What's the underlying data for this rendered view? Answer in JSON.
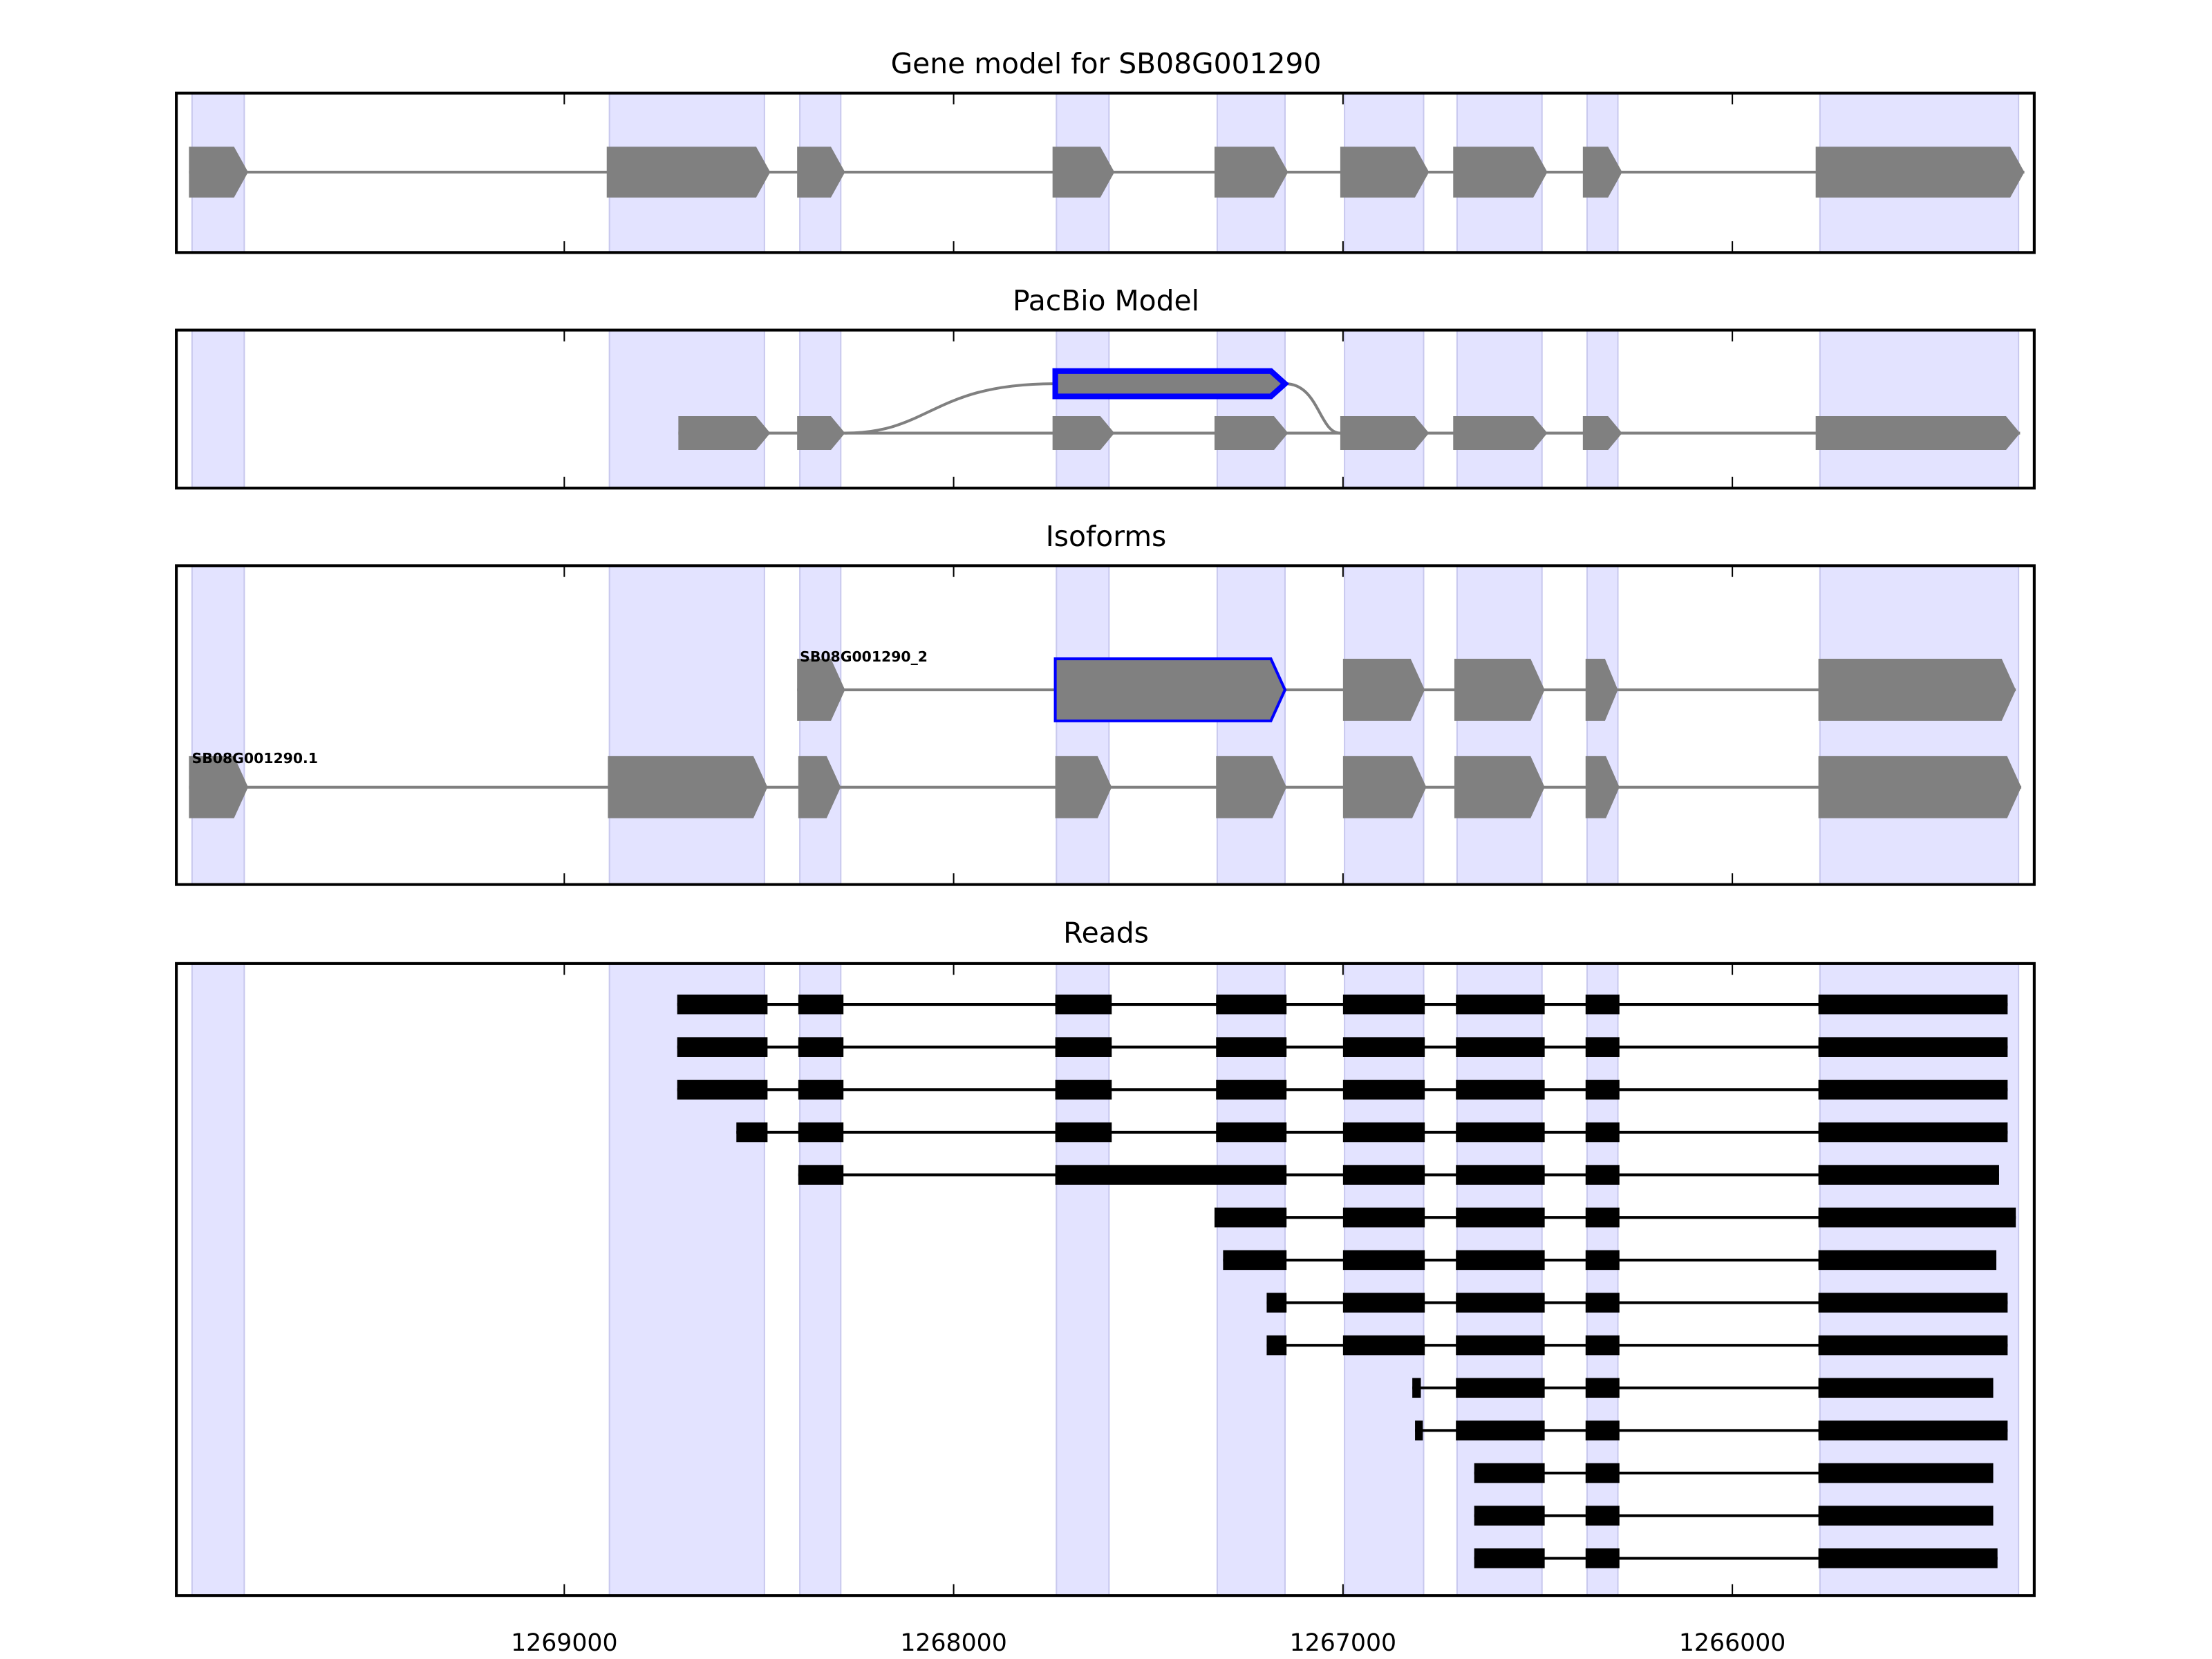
{
  "chart_data": {
    "type": "gene-structure",
    "xlim": [
      1270000,
      1265225
    ],
    "xticks": [
      1269000,
      1268000,
      1267000,
      1266000
    ],
    "xtick_labels": [
      "1269000",
      "1268000",
      "1267000",
      "1266000"
    ],
    "colors": {
      "band": "#e3e3ff",
      "band_edge": "#c8c8ee",
      "exon": "#808080",
      "highlight": "#0000ff",
      "read": "#000000"
    },
    "bands": [
      [
        1269956,
        1269822
      ],
      [
        1268884,
        1268486
      ],
      [
        1268395,
        1268290
      ],
      [
        1267736,
        1267601
      ],
      [
        1267323,
        1267149
      ],
      [
        1266996,
        1266793
      ],
      [
        1266707,
        1266489
      ],
      [
        1266373,
        1266294
      ],
      [
        1265775,
        1265265
      ]
    ],
    "panels": [
      {
        "title": "Gene model for SB08G001290",
        "tracks": [
          {
            "exons": [
              [
                1269964,
                1269812
              ],
              [
                1268891,
                1268471
              ],
              [
                1268402,
                1268279
              ],
              [
                1267746,
                1267587
              ],
              [
                1267330,
                1267141
              ],
              [
                1267007,
                1266779
              ],
              [
                1266717,
                1266475
              ],
              [
                1266384,
                1266283
              ],
              [
                1265786,
                1265250
              ]
            ]
          }
        ]
      },
      {
        "title": "PacBio Model",
        "tracks": [
          {
            "exons": [
              [
                1268707,
                1268471
              ],
              [
                1268402,
                1268279
              ],
              [
                1267746,
                1267587
              ],
              [
                1267330,
                1267141
              ],
              [
                1267007,
                1266779
              ],
              [
                1266717,
                1266475
              ],
              [
                1266384,
                1266283
              ],
              [
                1265786,
                1265261
              ]
            ]
          }
        ],
        "alt_exon": {
          "range": [
            1267739,
            1267149
          ],
          "highlight": true
        }
      },
      {
        "title": "Isoforms",
        "tracks": [
          {
            "label": "SB08G001290_2",
            "exons": [
              [
                1268402,
                1268279
              ],
              [
                1267739,
                1267149
              ],
              [
                1267000,
                1266790
              ],
              [
                1266714,
                1266482
              ],
              [
                1266377,
                1266294
              ],
              [
                1265779,
                1265272
              ]
            ],
            "highlight_index": 1
          },
          {
            "label": "SB08G001290.1",
            "exons": [
              [
                1269964,
                1269812
              ],
              [
                1268888,
                1268478
              ],
              [
                1268399,
                1268290
              ],
              [
                1267739,
                1267594
              ],
              [
                1267326,
                1267145
              ],
              [
                1267000,
                1266786
              ],
              [
                1266714,
                1266482
              ],
              [
                1266377,
                1266290
              ],
              [
                1265779,
                1265258
              ]
            ]
          }
        ]
      },
      {
        "title": "Reads",
        "reads": [
          [
            [
              1268710,
              1268478
            ],
            [
              1268399,
              1268283
            ],
            [
              1267739,
              1267594
            ],
            [
              1267326,
              1267145
            ],
            [
              1267000,
              1266790
            ],
            [
              1266710,
              1266482
            ],
            [
              1266377,
              1266290
            ],
            [
              1265779,
              1265293
            ]
          ],
          [
            [
              1268710,
              1268478
            ],
            [
              1268399,
              1268283
            ],
            [
              1267739,
              1267594
            ],
            [
              1267326,
              1267145
            ],
            [
              1267000,
              1266790
            ],
            [
              1266710,
              1266482
            ],
            [
              1266377,
              1266290
            ],
            [
              1265779,
              1265293
            ]
          ],
          [
            [
              1268710,
              1268478
            ],
            [
              1268399,
              1268283
            ],
            [
              1267739,
              1267594
            ],
            [
              1267326,
              1267145
            ],
            [
              1267000,
              1266790
            ],
            [
              1266710,
              1266482
            ],
            [
              1266377,
              1266290
            ],
            [
              1265779,
              1265293
            ]
          ],
          [
            [
              1268558,
              1268478
            ],
            [
              1268399,
              1268283
            ],
            [
              1267739,
              1267594
            ],
            [
              1267326,
              1267145
            ],
            [
              1267000,
              1266790
            ],
            [
              1266710,
              1266482
            ],
            [
              1266377,
              1266290
            ],
            [
              1265779,
              1265293
            ]
          ],
          [
            [
              1268399,
              1268283
            ],
            [
              1267739,
              1267145
            ],
            [
              1267000,
              1266790
            ],
            [
              1266710,
              1266482
            ],
            [
              1266377,
              1266290
            ],
            [
              1265779,
              1265315
            ]
          ],
          [
            [
              1267330,
              1267145
            ],
            [
              1267000,
              1266790
            ],
            [
              1266710,
              1266482
            ],
            [
              1266377,
              1266290
            ],
            [
              1265779,
              1265272
            ]
          ],
          [
            [
              1267308,
              1267145
            ],
            [
              1267000,
              1266790
            ],
            [
              1266710,
              1266482
            ],
            [
              1266377,
              1266290
            ],
            [
              1265779,
              1265322
            ]
          ],
          [
            [
              1267196,
              1267145
            ],
            [
              1267000,
              1266790
            ],
            [
              1266710,
              1266482
            ],
            [
              1266377,
              1266290
            ],
            [
              1265779,
              1265293
            ]
          ],
          [
            [
              1267196,
              1267145
            ],
            [
              1267000,
              1266790
            ],
            [
              1266710,
              1266482
            ],
            [
              1266377,
              1266290
            ],
            [
              1265779,
              1265293
            ]
          ],
          [
            [
              1266822,
              1266800
            ],
            [
              1266710,
              1266482
            ],
            [
              1266377,
              1266290
            ],
            [
              1265779,
              1265330
            ]
          ],
          [
            [
              1266815,
              1266795
            ],
            [
              1266710,
              1266482
            ],
            [
              1266377,
              1266290
            ],
            [
              1265779,
              1265293
            ]
          ],
          [
            [
              1266663,
              1266482
            ],
            [
              1266377,
              1266290
            ],
            [
              1265779,
              1265330
            ]
          ],
          [
            [
              1266663,
              1266482
            ],
            [
              1266377,
              1266290
            ],
            [
              1265779,
              1265330
            ]
          ],
          [
            [
              1266663,
              1266482
            ],
            [
              1266377,
              1266290
            ],
            [
              1265779,
              1265319
            ]
          ]
        ]
      }
    ]
  }
}
